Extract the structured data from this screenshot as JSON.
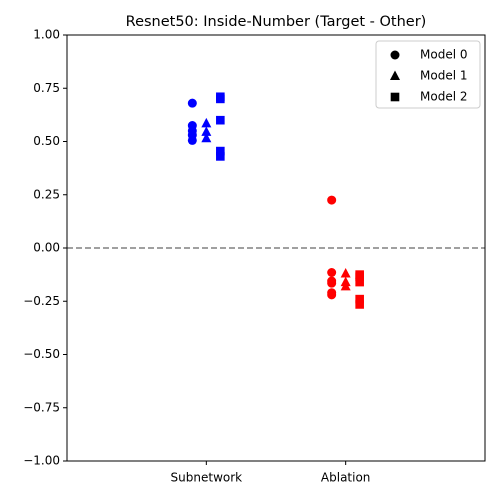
{
  "chart_data": {
    "type": "scatter",
    "title": "Resnet50: Inside-Number (Target - Other)",
    "categories": [
      "Subnetwork",
      "Ablation"
    ],
    "category_colors": [
      "blue",
      "red"
    ],
    "series": [
      {
        "name": "Model 0",
        "marker": "circle",
        "values": [
          [
            0.68,
            0.575,
            0.55,
            0.53,
            0.505
          ],
          [
            0.225,
            -0.115,
            -0.155,
            -0.165,
            -0.21,
            -0.22
          ]
        ]
      },
      {
        "name": "Model 1",
        "marker": "triangle",
        "values": [
          [
            0.585,
            0.545,
            0.515
          ],
          [
            -0.12,
            -0.16,
            -0.18
          ]
        ]
      },
      {
        "name": "Model 2",
        "marker": "square",
        "values": [
          [
            0.71,
            0.7,
            0.6,
            0.455,
            0.43
          ],
          [
            -0.125,
            -0.135,
            -0.16,
            -0.24,
            -0.265
          ]
        ]
      }
    ],
    "ylim": [
      -1,
      1
    ],
    "yticks": [
      {
        "value": -1,
        "label": "−1.00"
      },
      {
        "value": -0.75,
        "label": "−0.75"
      },
      {
        "value": -0.5,
        "label": "−0.50"
      },
      {
        "value": -0.25,
        "label": "−0.25"
      },
      {
        "value": 0,
        "label": "0.00"
      },
      0.25,
      {
        "value": 0.5,
        "label": "0.50"
      },
      0.75,
      {
        "value": 1,
        "label": "1.00"
      }
    ],
    "hline": {
      "value": 0,
      "color": "gray",
      "style": "dashed"
    },
    "legend": "upper right",
    "legend_marker_color": "black"
  }
}
